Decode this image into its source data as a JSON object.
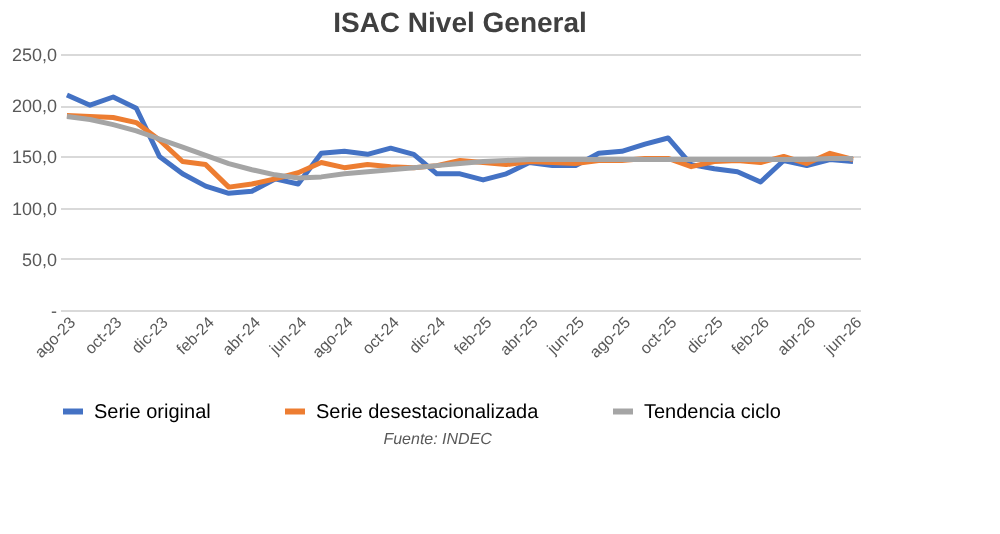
{
  "chart_data": {
    "type": "line",
    "title": "ISAC Nivel General",
    "categories": [
      "ago-23",
      null,
      "oct-23",
      null,
      "dic-23",
      null,
      "feb-24",
      null,
      "abr-24",
      null,
      "jun-24",
      null,
      "ago-24",
      null,
      "oct-24",
      null,
      "dic-24",
      null,
      "feb-25",
      null,
      "abr-25",
      null,
      "jun-25",
      null,
      "ago-25",
      null,
      "oct-25",
      null,
      "dic-25",
      null,
      "feb-26",
      null,
      "abr-26",
      null,
      "jun-26"
    ],
    "series": [
      {
        "name": "Serie original",
        "color": "#4472c4",
        "values": [
          210,
          200,
          208,
          197,
          150,
          133,
          121,
          114,
          116,
          128,
          123,
          153,
          155,
          152,
          158,
          152,
          133,
          133,
          127,
          133,
          144,
          141,
          141,
          153,
          155,
          162,
          168,
          142,
          138,
          135,
          125,
          146,
          141,
          147,
          145
        ]
      },
      {
        "name": "Serie desestacionalizada",
        "color": "#ed7d31",
        "values": [
          190,
          189,
          188,
          183,
          166,
          145,
          142,
          120,
          123,
          128,
          134,
          144,
          139,
          142,
          140,
          139,
          141,
          146,
          144,
          142,
          145,
          144,
          143,
          146,
          146,
          148,
          148,
          140,
          145,
          146,
          144,
          150,
          143,
          153,
          147
        ]
      },
      {
        "name": "Tendencia ciclo",
        "color": "#a5a5a5",
        "values": [
          189,
          186,
          181,
          175,
          167,
          159,
          151,
          143,
          137,
          132,
          129,
          130,
          133,
          135,
          137,
          139,
          141,
          143,
          145,
          146,
          147,
          147,
          147,
          147,
          147,
          147,
          147,
          147,
          147,
          147,
          147,
          147,
          147,
          148,
          148
        ]
      }
    ],
    "ylim": [
      0,
      250
    ],
    "yticks": [
      {
        "value": 0,
        "label": "-"
      },
      {
        "value": 50,
        "label": "50,0"
      },
      {
        "value": 100,
        "label": "100,0"
      },
      {
        "value": 150,
        "label": "150,0"
      },
      {
        "value": 200,
        "label": "200,0"
      },
      {
        "value": 250,
        "label": "250,0"
      }
    ],
    "grid": "y",
    "legend": "bottom",
    "marker": "none",
    "line_style": "solid",
    "annotations": [
      "Fuente: INDEC"
    ]
  }
}
